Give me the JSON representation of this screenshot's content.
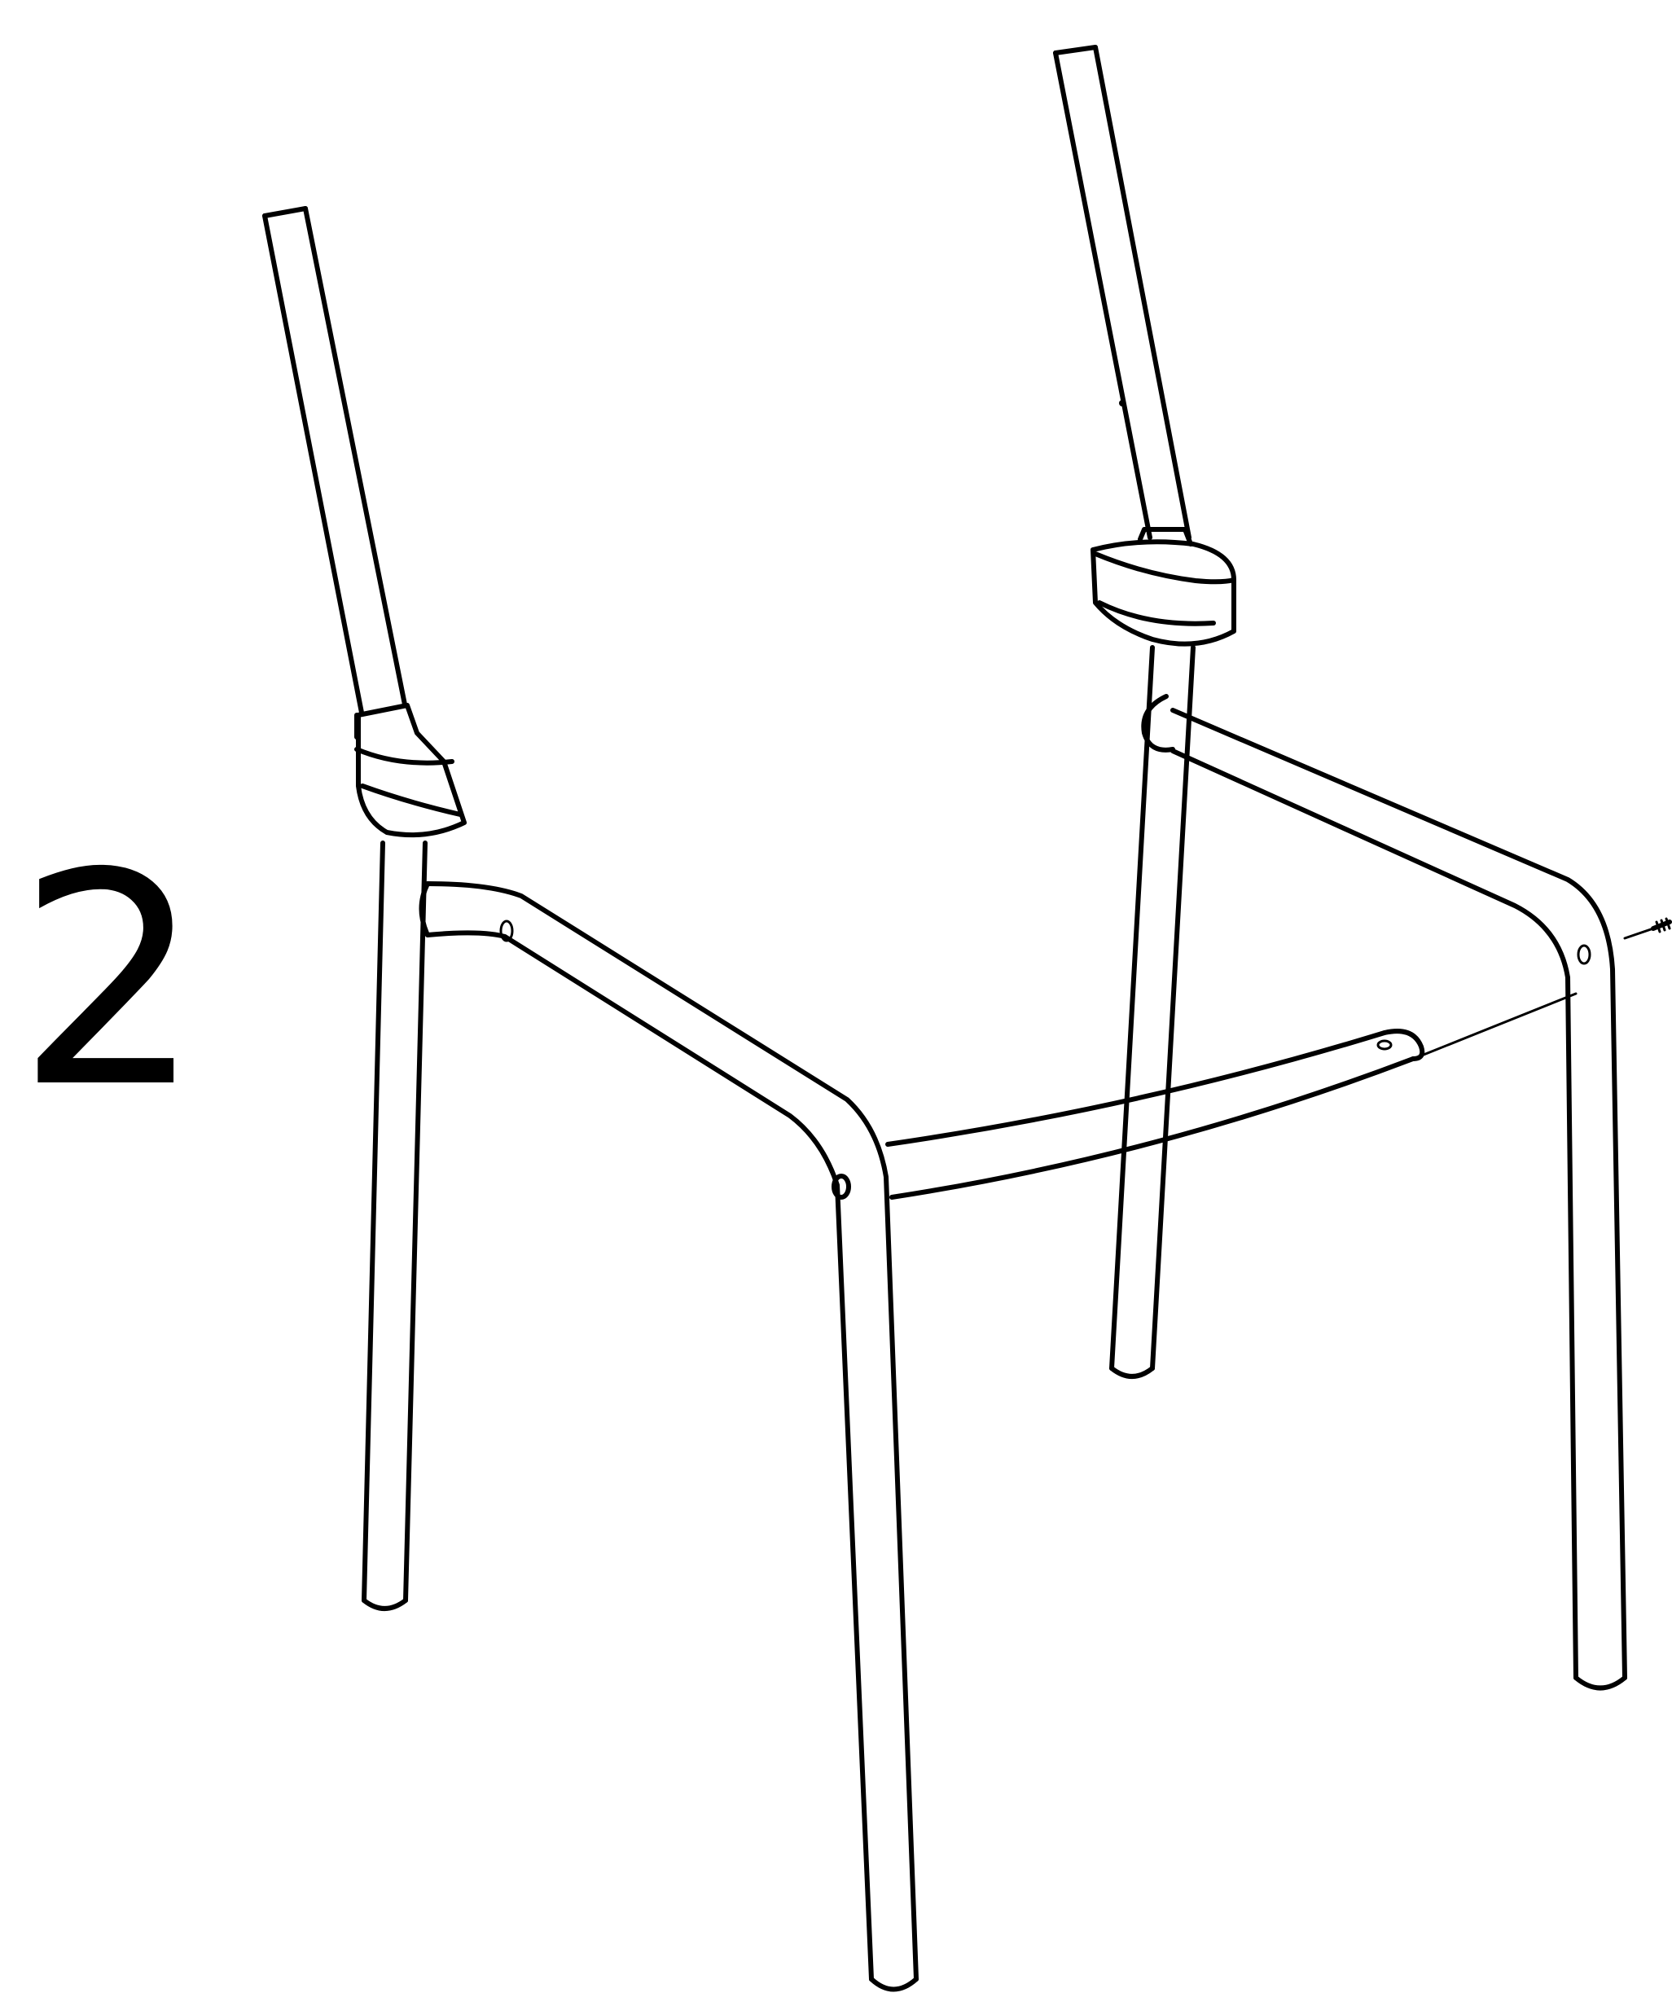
{
  "step": {
    "number": "2"
  },
  "colors": {
    "line": "#000000",
    "background": "#ffffff"
  },
  "parts": {
    "frame": "chair-frame",
    "fastener": "screw-icon"
  }
}
